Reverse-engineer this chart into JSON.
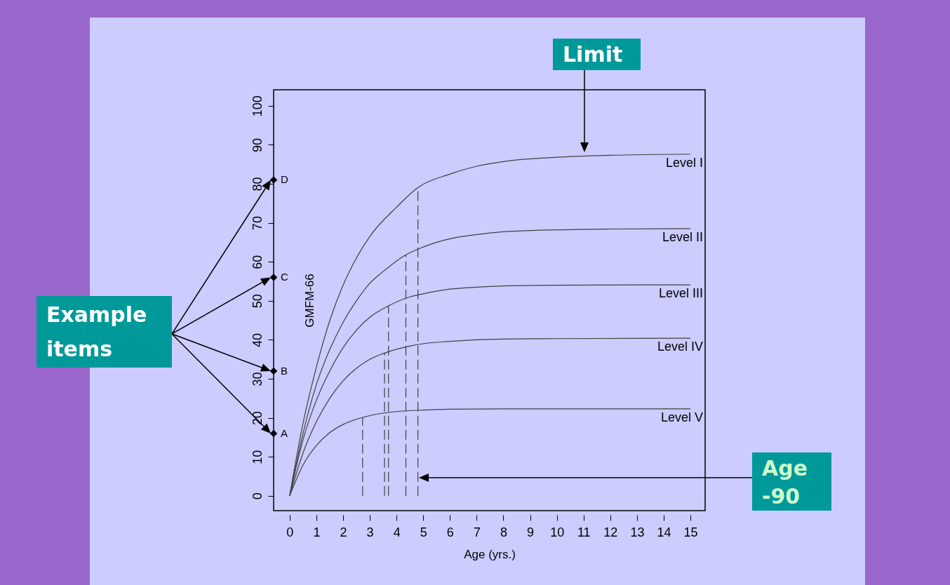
{
  "chart_data": {
    "type": "line",
    "xlabel": "Age (yrs.)",
    "ylabel": "GMFM-66",
    "xlim": [
      -0.6,
      15.55
    ],
    "ylim": [
      -3.8,
      104.1
    ],
    "xticks": [
      0,
      1,
      2,
      3,
      4,
      5,
      6,
      7,
      8,
      9,
      10,
      11,
      12,
      13,
      14,
      15
    ],
    "yticks": [
      0,
      10,
      20,
      30,
      40,
      50,
      60,
      70,
      80,
      90,
      100
    ],
    "grid": false,
    "marker": "none",
    "line_style": "solid",
    "series": [
      {
        "name": "Level I",
        "color": "#404040",
        "x": [
          0,
          0.5,
          1,
          1.5,
          2,
          2.5,
          3,
          4,
          4.8,
          6,
          7,
          8,
          10,
          12,
          15
        ],
        "values": [
          0,
          18.6,
          33,
          44.9,
          54,
          61,
          66.5,
          74,
          79,
          82.5,
          84.5,
          85.7,
          86.8,
          87.3,
          87.6
        ]
      },
      {
        "name": "Level II",
        "color": "#404040",
        "x": [
          0,
          0.5,
          1,
          1.5,
          2,
          2.5,
          3,
          3.5,
          4.35,
          5,
          6,
          7,
          8,
          10,
          12,
          15
        ],
        "values": [
          0,
          16,
          28.5,
          37.5,
          44.5,
          50,
          54.5,
          57.5,
          61.8,
          63.8,
          65.9,
          67,
          67.7,
          68.2,
          68.4,
          68.5
        ]
      },
      {
        "name": "Level III",
        "color": "#404040",
        "x": [
          0,
          0.5,
          1,
          1.5,
          2,
          2.5,
          3,
          3.7,
          4.5,
          5,
          6,
          7,
          8,
          10,
          15
        ],
        "values": [
          0,
          14.4,
          24.5,
          32,
          38,
          42.5,
          45.8,
          48.7,
          51,
          51.8,
          53,
          53.5,
          53.8,
          54,
          54.1
        ]
      },
      {
        "name": "Level IV",
        "color": "#404040",
        "x": [
          0,
          0.5,
          1,
          1.5,
          2,
          2.5,
          3,
          3.55,
          4.5,
          5,
          6,
          8,
          10,
          15
        ],
        "values": [
          0,
          11,
          19,
          25,
          29.5,
          32.7,
          35,
          36.6,
          38.4,
          39,
          39.6,
          40.2,
          40.3,
          40.4
        ]
      },
      {
        "name": "Level V",
        "color": "#404040",
        "x": [
          0,
          0.5,
          1,
          1.5,
          2,
          2.73,
          3.5,
          4,
          5,
          6,
          8,
          15
        ],
        "values": [
          0,
          7.9,
          12.9,
          16.2,
          18.3,
          20.1,
          21.2,
          21.6,
          22,
          22.2,
          22.3,
          22.3
        ]
      },
      {
        "color": "#404040",
        "line_style": "dashed",
        "x": [
          4.8,
          4.8
        ],
        "values": [
          0,
          79
        ]
      },
      {
        "color": "#404040",
        "line_style": "dashed",
        "x": [
          4.35,
          4.35
        ],
        "values": [
          0,
          61.8
        ]
      },
      {
        "color": "#404040",
        "line_style": "dashed",
        "x": [
          3.7,
          3.7
        ],
        "values": [
          0,
          48.7
        ]
      },
      {
        "color": "#404040",
        "line_style": "dashed",
        "x": [
          3.55,
          3.55
        ],
        "values": [
          0,
          36.6
        ]
      },
      {
        "color": "#404040",
        "line_style": "dashed",
        "x": [
          2.73,
          2.73
        ],
        "values": [
          0,
          20.1
        ]
      },
      {
        "type": "scatter",
        "marker": "diamond",
        "color": "#000000",
        "x": [
          -0.6,
          -0.6,
          -0.6,
          -0.6
        ],
        "values": [
          16,
          32,
          56,
          81
        ],
        "value_labels": [
          "A",
          "B",
          "C",
          "D"
        ]
      }
    ],
    "annotations": [
      "Limit",
      "Age -90",
      "Example items"
    ]
  }
}
